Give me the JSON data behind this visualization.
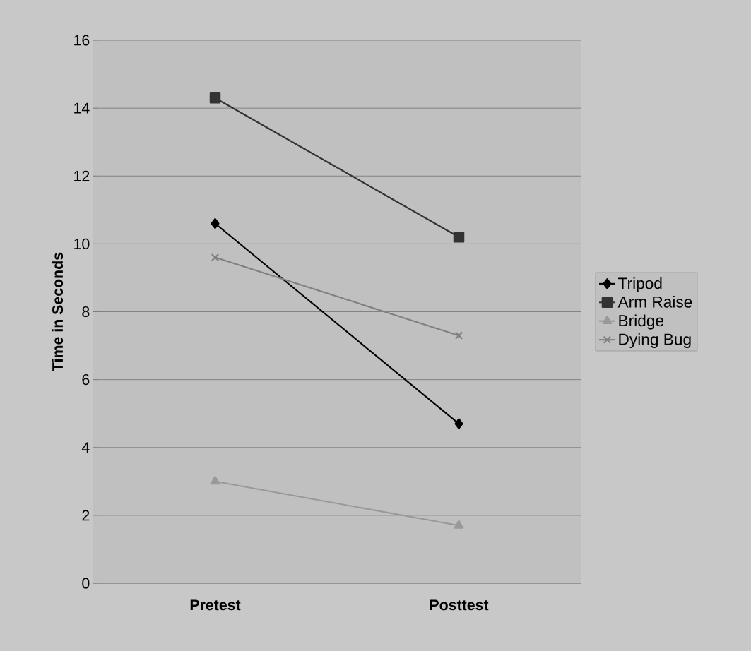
{
  "chart_data": {
    "type": "line",
    "ylabel": "Time in Seconds",
    "categories": [
      "Pretest",
      "Posttest"
    ],
    "series": [
      {
        "name": "Tripod",
        "color": "#000000",
        "marker": "diamond",
        "values": [
          10.6,
          4.7
        ]
      },
      {
        "name": "Arm Raise",
        "color": "#333333",
        "marker": "square",
        "values": [
          14.3,
          10.2
        ]
      },
      {
        "name": "Bridge",
        "color": "#999999",
        "marker": "triangle",
        "values": [
          3.0,
          1.7
        ]
      },
      {
        "name": "Dying Bug",
        "color": "#808080",
        "marker": "cross",
        "values": [
          9.6,
          7.3
        ]
      }
    ],
    "ylim": [
      0,
      16
    ],
    "yticks": [
      0,
      2,
      4,
      6,
      8,
      10,
      12,
      14,
      16
    ],
    "grid": "y",
    "legend": "right",
    "line_style": "solid"
  }
}
